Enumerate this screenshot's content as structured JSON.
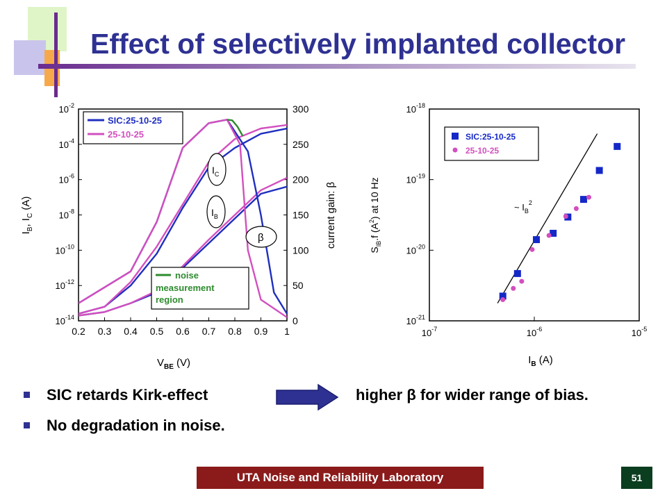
{
  "slide": {
    "title": "Effect of selectively implanted collector",
    "bullets": [
      {
        "text_a": "SIC retards Kirk-effect",
        "text_b": "higher β for wider range of bias."
      },
      {
        "text_a": "No degradation in noise.",
        "text_b": ""
      }
    ],
    "footer_lab": "UTA Noise and Reliability Laboratory",
    "page_number": "51",
    "colors": {
      "title": "#2e3192",
      "footer_lab_bg": "#8b1a1a",
      "footer_page_bg": "#0b3d1f",
      "arrow": "#2e3192",
      "series_sic": "#1f2fbf",
      "series_ref": "#d24fbf",
      "noise_region": "#2e8b2e"
    }
  },
  "chart_data": [
    {
      "type": "line",
      "xlabel": "V",
      "xlabel_sub": "BE",
      "xlabel_unit": "(V)",
      "ylabel_left": "I_B, I_C (A)",
      "ylabel_right": "current gain: β",
      "x_ticks": [
        "0.2",
        "0.3",
        "0.4",
        "0.5",
        "0.6",
        "0.7",
        "0.8",
        "0.9",
        "1"
      ],
      "xlim": [
        0.2,
        1.0
      ],
      "y_left_ticks": [
        {
          "base": "10",
          "exp": "-2"
        },
        {
          "base": "10",
          "exp": "-4"
        },
        {
          "base": "10",
          "exp": "-6"
        },
        {
          "base": "10",
          "exp": "-8"
        },
        {
          "base": "10",
          "exp": "-10"
        },
        {
          "base": "10",
          "exp": "-12"
        },
        {
          "base": "10",
          "exp": "-14"
        }
      ],
      "y_left_log_range": [
        -14,
        -2
      ],
      "y_right_ticks": [
        "300",
        "250",
        "200",
        "150",
        "100",
        "50",
        "0"
      ],
      "y_right_range": [
        0,
        300
      ],
      "legend": [
        {
          "name": "SIC:25-10-25",
          "color": "#1f2fbf"
        },
        {
          "name": "25-10-25",
          "color": "#d24fbf"
        }
      ],
      "legend_position": "top-left",
      "noise_box": [
        "noise",
        "measurement",
        "region"
      ],
      "annotations": [
        "I_C",
        "I_B",
        "β"
      ],
      "series": [
        {
          "name": "SIC:25-10-25 I_C",
          "axis": "left",
          "color": "#1f2fbf",
          "x": [
            0.2,
            0.3,
            0.4,
            0.5,
            0.6,
            0.7,
            0.8,
            0.9,
            1.0
          ],
          "y": [
            -13.6,
            -13.2,
            -12.0,
            -10.2,
            -7.6,
            -5.3,
            -4.2,
            -3.4,
            -3.1
          ]
        },
        {
          "name": "25-10-25 I_C",
          "axis": "left",
          "color": "#d24fbf",
          "x": [
            0.2,
            0.3,
            0.4,
            0.5,
            0.6,
            0.7,
            0.8,
            0.9,
            1.0
          ],
          "y": [
            -13.6,
            -13.2,
            -11.8,
            -9.8,
            -7.4,
            -5.0,
            -3.7,
            -3.1,
            -2.9
          ]
        },
        {
          "name": "SIC:25-10-25 I_B",
          "axis": "left",
          "color": "#1f2fbf",
          "x": [
            0.2,
            0.3,
            0.4,
            0.5,
            0.6,
            0.7,
            0.8,
            0.9,
            1.0
          ],
          "y": [
            -13.7,
            -13.5,
            -13.0,
            -12.4,
            -11.0,
            -9.6,
            -8.2,
            -6.8,
            -6.4
          ]
        },
        {
          "name": "25-10-25 I_B",
          "axis": "left",
          "color": "#d24fbf",
          "x": [
            0.2,
            0.3,
            0.4,
            0.5,
            0.6,
            0.7,
            0.8,
            0.9,
            1.0
          ],
          "y": [
            -13.7,
            -13.5,
            -13.0,
            -12.3,
            -10.9,
            -9.4,
            -8.0,
            -6.6,
            -5.9
          ]
        },
        {
          "name": "SIC:25-10-25 β",
          "axis": "right",
          "color": "#1f2fbf",
          "x": [
            0.2,
            0.4,
            0.5,
            0.6,
            0.7,
            0.77,
            0.85,
            0.9,
            0.95,
            1.0
          ],
          "y": [
            25,
            70,
            140,
            245,
            280,
            285,
            240,
            150,
            40,
            10
          ]
        },
        {
          "name": "25-10-25 β",
          "axis": "right",
          "color": "#d24fbf",
          "x": [
            0.2,
            0.4,
            0.5,
            0.6,
            0.7,
            0.77,
            0.82,
            0.85,
            0.9,
            1.0
          ],
          "y": [
            25,
            70,
            140,
            245,
            280,
            285,
            250,
            100,
            30,
            5
          ]
        },
        {
          "name": "noise measurement region",
          "axis": "right",
          "color": "#2e8b2e",
          "x": [
            0.77,
            0.79,
            0.81,
            0.83
          ],
          "y": [
            285,
            284,
            275,
            262
          ]
        }
      ]
    },
    {
      "type": "scatter",
      "xlabel": "I",
      "xlabel_sub": "B",
      "xlabel_unit": "(A)",
      "ylabel": "S_IB.f (A²) at 10 Hz",
      "x_ticks": [
        {
          "base": "10",
          "exp": "-7"
        },
        {
          "base": "10",
          "exp": "-6"
        },
        {
          "base": "10",
          "exp": "-5"
        }
      ],
      "x_log_range": [
        -7,
        -5
      ],
      "y_ticks": [
        {
          "base": "10",
          "exp": "-18"
        },
        {
          "base": "10",
          "exp": "-19"
        },
        {
          "base": "10",
          "exp": "-20"
        },
        {
          "base": "10",
          "exp": "-21"
        }
      ],
      "y_log_range": [
        -21,
        -18
      ],
      "legend": [
        {
          "name": "SIC:25-10-25",
          "color": "#1428c8",
          "marker": "square"
        },
        {
          "name": "25-10-25",
          "color": "#d24fbf",
          "marker": "circle"
        }
      ],
      "legend_position": "top-left",
      "guide_label": "~ I_B²",
      "guide_line_log": [
        [
          -6.35,
          -20.75
        ],
        [
          -5.4,
          -18.35
        ]
      ],
      "series": [
        {
          "name": "SIC:25-10-25",
          "x_log": [
            -6.3,
            -6.16,
            -5.98,
            -5.82,
            -5.68,
            -5.53,
            -5.38,
            -5.21
          ],
          "y_log": [
            -20.65,
            -20.33,
            -19.85,
            -19.76,
            -19.53,
            -19.28,
            -18.87,
            -18.53
          ]
        },
        {
          "name": "25-10-25",
          "x_log": [
            -6.3,
            -6.2,
            -6.12,
            -6.02,
            -5.86,
            -5.7,
            -5.6,
            -5.48
          ],
          "y_log": [
            -20.7,
            -20.54,
            -20.44,
            -19.99,
            -19.79,
            -19.52,
            -19.41,
            -19.25
          ]
        }
      ]
    }
  ]
}
